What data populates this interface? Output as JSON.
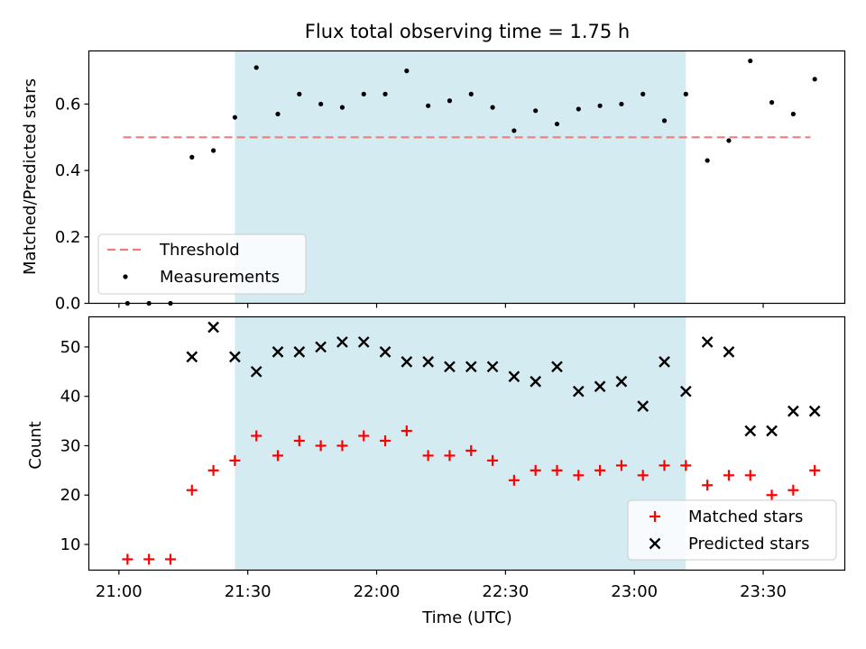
{
  "title": "Flux total observing time = 1.75 h",
  "colors": {
    "shade": "#add8e6",
    "threshold": "#f07c7c",
    "measurement": "#000000",
    "matched": "#ff0000",
    "predicted": "#000000"
  },
  "chart_data": [
    {
      "type": "scatter",
      "panel": "top",
      "ylabel": "Matched/Predicted stars",
      "xlim": [
        "20:53",
        "23:49"
      ],
      "ylim": [
        0,
        0.76
      ],
      "yticks": [
        0.0,
        0.2,
        0.4,
        0.6
      ],
      "ytick_labels": [
        "0.0",
        "0.2",
        "0.4",
        "0.6"
      ],
      "shaded_range": [
        "21:27",
        "23:12"
      ],
      "threshold": {
        "name": "Threshold",
        "y": 0.5,
        "x_range": [
          "21:01",
          "23:41"
        ]
      },
      "legend": {
        "placement": "lower-left",
        "entries": [
          "Threshold",
          "Measurements"
        ]
      },
      "series": [
        {
          "name": "Measurements",
          "x": [
            "21:02",
            "21:07",
            "21:12",
            "21:17",
            "21:22",
            "21:27",
            "21:32",
            "21:37",
            "21:42",
            "21:47",
            "21:52",
            "21:57",
            "22:02",
            "22:07",
            "22:12",
            "22:17",
            "22:22",
            "22:27",
            "22:32",
            "22:37",
            "22:42",
            "22:47",
            "22:52",
            "22:57",
            "23:02",
            "23:07",
            "23:12",
            "23:17",
            "23:22",
            "23:27",
            "23:32",
            "23:37",
            "23:42"
          ],
          "y": [
            0.0,
            0.0,
            0.0,
            0.44,
            0.46,
            0.56,
            0.71,
            0.57,
            0.63,
            0.6,
            0.59,
            0.63,
            0.63,
            0.7,
            0.595,
            0.61,
            0.63,
            0.59,
            0.52,
            0.58,
            0.54,
            0.585,
            0.595,
            0.6,
            0.63,
            0.55,
            0.63,
            0.43,
            0.49,
            0.73,
            0.605,
            0.57,
            0.675
          ]
        }
      ]
    },
    {
      "type": "scatter",
      "panel": "bottom",
      "ylabel": "Count",
      "xlabel": "Time (UTC)",
      "xlim": [
        "20:53",
        "23:49"
      ],
      "xticks": [
        "21:00",
        "21:30",
        "22:00",
        "22:30",
        "23:00",
        "23:30"
      ],
      "ylim": [
        4.8,
        56.1
      ],
      "yticks": [
        10,
        20,
        30,
        40,
        50
      ],
      "ytick_labels": [
        "10",
        "20",
        "30",
        "40",
        "50"
      ],
      "shaded_range": [
        "21:27",
        "23:12"
      ],
      "legend": {
        "placement": "lower-right",
        "entries": [
          "Matched stars",
          "Predicted stars"
        ]
      },
      "series": [
        {
          "name": "Matched stars",
          "marker": "plus",
          "x": [
            "21:02",
            "21:07",
            "21:12",
            "21:17",
            "21:22",
            "21:27",
            "21:32",
            "21:37",
            "21:42",
            "21:47",
            "21:52",
            "21:57",
            "22:02",
            "22:07",
            "22:12",
            "22:17",
            "22:22",
            "22:27",
            "22:32",
            "22:37",
            "22:42",
            "22:47",
            "22:52",
            "22:57",
            "23:02",
            "23:07",
            "23:12",
            "23:17",
            "23:22",
            "23:27",
            "23:32",
            "23:37",
            "23:42"
          ],
          "y": [
            7,
            7,
            7,
            21,
            25,
            27,
            32,
            28,
            31,
            30,
            30,
            32,
            31,
            33,
            28,
            28,
            29,
            27,
            23,
            25,
            25,
            24,
            25,
            26,
            24,
            26,
            26,
            22,
            24,
            24,
            20,
            21,
            25
          ]
        },
        {
          "name": "Predicted stars",
          "marker": "x",
          "x": [
            "21:17",
            "21:22",
            "21:27",
            "21:32",
            "21:37",
            "21:42",
            "21:47",
            "21:52",
            "21:57",
            "22:02",
            "22:07",
            "22:12",
            "22:17",
            "22:22",
            "22:27",
            "22:32",
            "22:37",
            "22:42",
            "22:47",
            "22:52",
            "22:57",
            "23:02",
            "23:07",
            "23:12",
            "23:17",
            "23:22",
            "23:27",
            "23:32",
            "23:37",
            "23:42"
          ],
          "y": [
            48,
            54,
            48,
            45,
            49,
            49,
            50,
            51,
            51,
            49,
            47,
            47,
            46,
            46,
            46,
            44,
            43,
            46,
            41,
            42,
            43,
            38,
            47,
            41,
            51,
            49,
            33,
            33,
            37,
            37
          ]
        }
      ]
    }
  ]
}
